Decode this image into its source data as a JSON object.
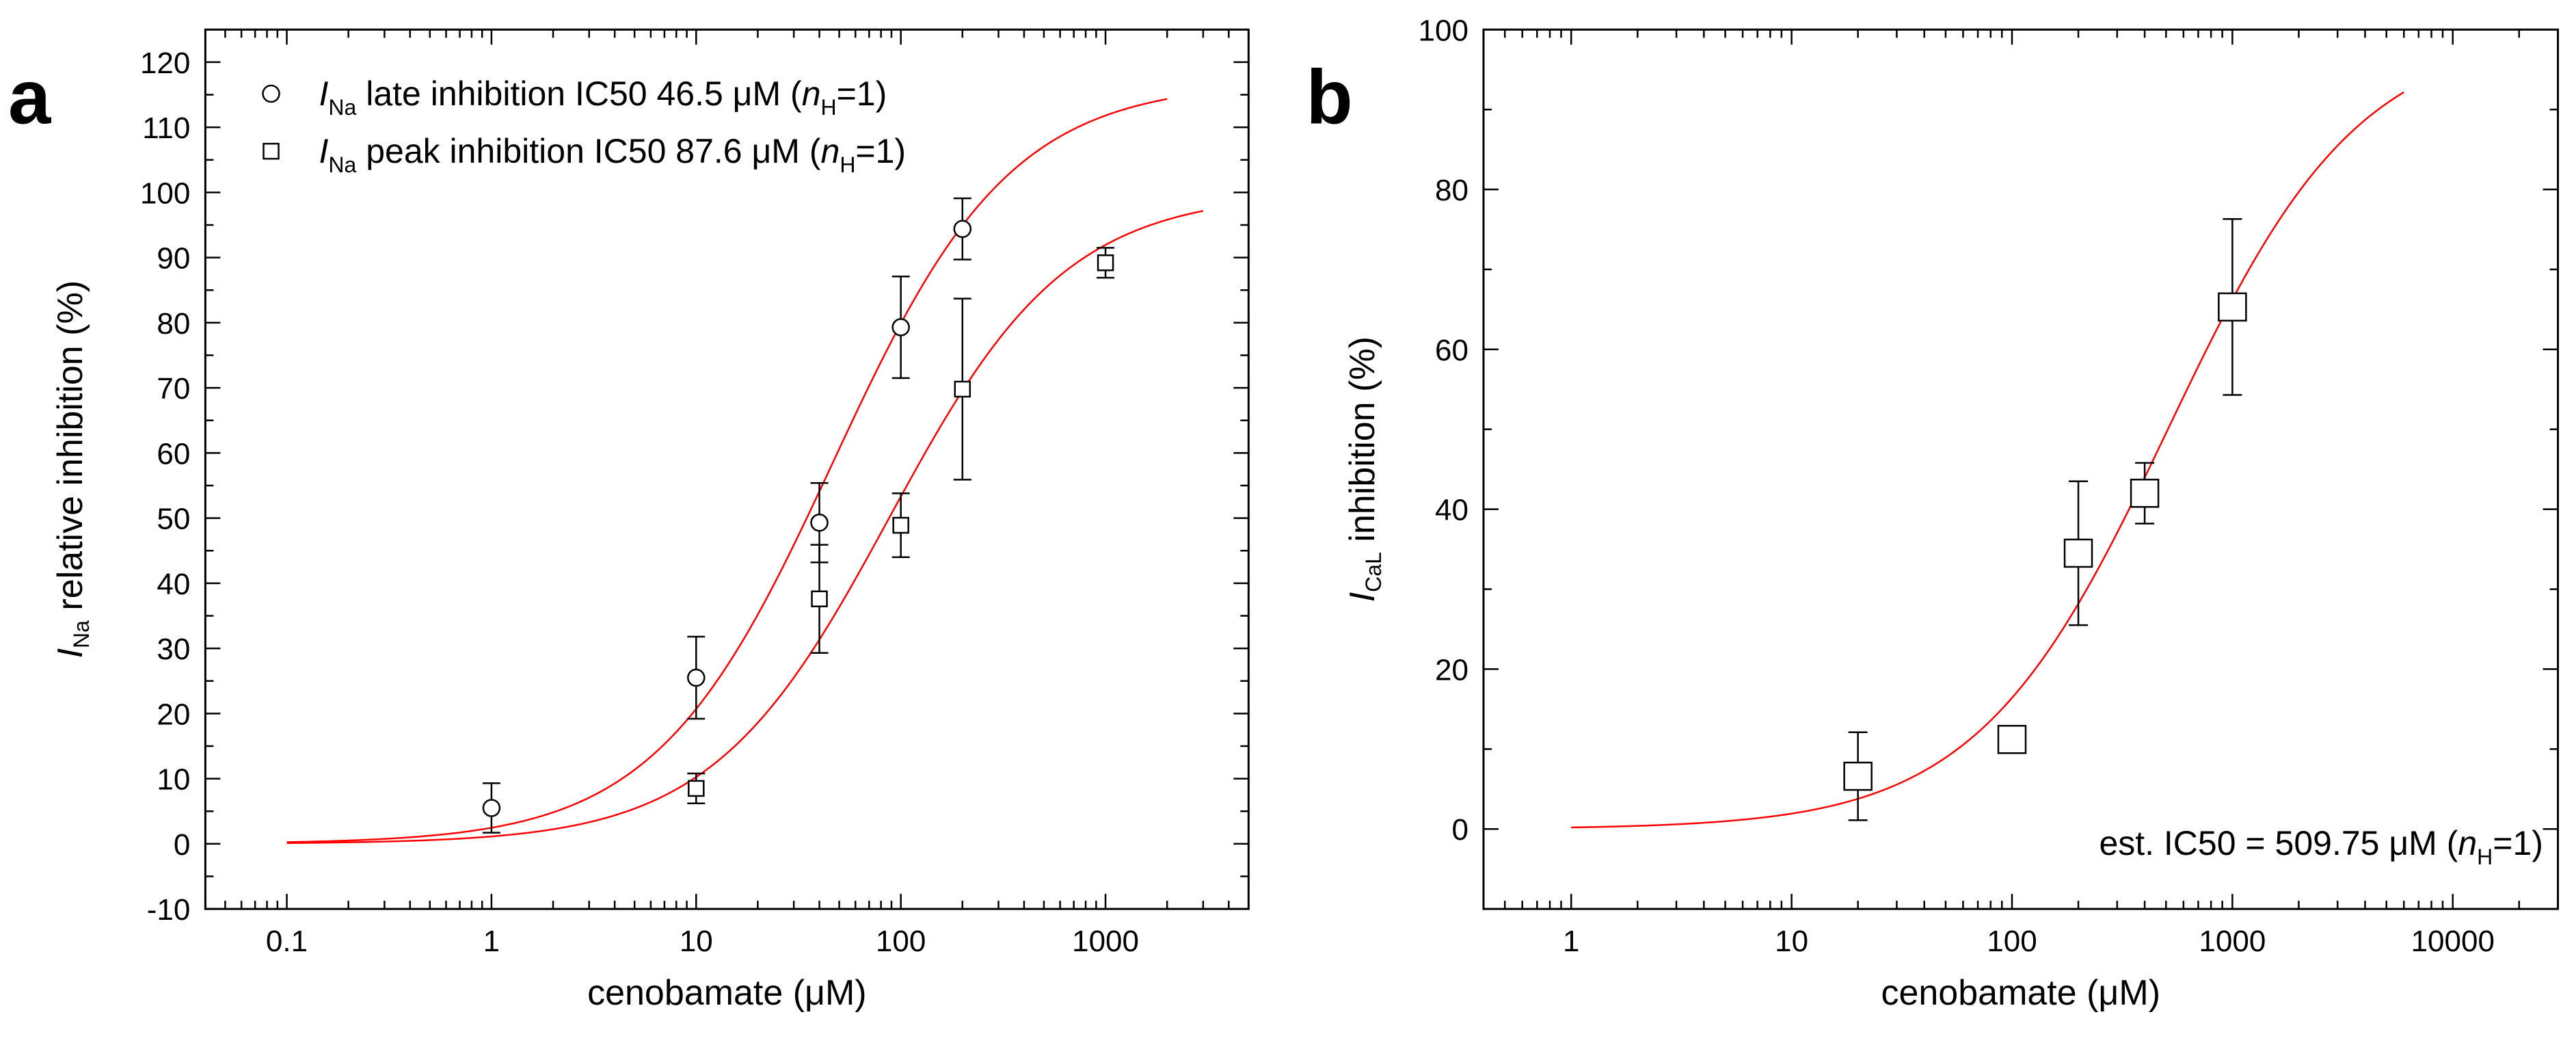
{
  "chart_data": [
    {
      "panel_label": "a",
      "type": "scatter",
      "xscale": "log",
      "xlim": [
        0.04,
        5000
      ],
      "ylim": [
        -10,
        125
      ],
      "xlabel": "cenobamate (μM)",
      "ylabel": {
        "italic": "I",
        "sub": "Na",
        "rest": " relative inhibition (%)"
      },
      "xticks": [
        0.1,
        1,
        10,
        100,
        1000
      ],
      "xtick_labels": [
        "0.1",
        "1",
        "10",
        "100",
        "1000"
      ],
      "yticks": [
        -10,
        0,
        10,
        20,
        30,
        40,
        50,
        60,
        70,
        80,
        90,
        100,
        110,
        120
      ],
      "ytick_labels": [
        "-10",
        "0",
        "10",
        "20",
        "30",
        "40",
        "50",
        "60",
        "70",
        "80",
        "90",
        "100",
        "110",
        "120"
      ],
      "series": [
        {
          "name": "late",
          "marker": "circle",
          "legend": {
            "italic": "I",
            "sub": "Na",
            "text1": " late inhibition IC50 46.5 μM (",
            "italic2": "n",
            "sub2": "H",
            "text2": "=1)"
          },
          "x": [
            1,
            10,
            40,
            100,
            200
          ],
          "y": [
            5.5,
            25.5,
            49.3,
            79.3,
            94.4
          ],
          "err": [
            3.8,
            6.3,
            6.1,
            7.8,
            4.7
          ],
          "fit": {
            "ic50": 46.5,
            "nH": 1,
            "top": 117,
            "x_range": [
              0.1,
              2000
            ]
          }
        },
        {
          "name": "peak",
          "marker": "square",
          "legend": {
            "italic": "I",
            "sub": "Na",
            "text1": " peak inhibition IC50 87.6 μM (",
            "italic2": "n",
            "sub2": "H",
            "text2": "=1)"
          },
          "x": [
            10,
            40,
            100,
            200,
            1000
          ],
          "y": [
            8.5,
            37.6,
            48.9,
            69.8,
            89.2
          ],
          "err": [
            2.3,
            8.3,
            4.9,
            13.9,
            2.3
          ],
          "fit": {
            "ic50": 87.6,
            "nH": 1,
            "top": 100,
            "x_range": [
              0.1,
              3000
            ]
          }
        }
      ]
    },
    {
      "panel_label": "b",
      "type": "scatter",
      "xscale": "log",
      "xlim": [
        0.4,
        30000
      ],
      "ylim": [
        -10,
        100
      ],
      "xlabel": "cenobamate (μM)",
      "ylabel": {
        "italic": "I",
        "sub": "CaL",
        "rest": " inhibition (%)"
      },
      "xticks": [
        1,
        10,
        100,
        1000,
        10000
      ],
      "xtick_labels": [
        "1",
        "10",
        "100",
        "1000",
        "10000"
      ],
      "yticks": [
        0,
        20,
        40,
        60,
        80,
        100
      ],
      "ytick_labels": [
        "0",
        "20",
        "40",
        "60",
        "80",
        "100"
      ],
      "annotation": {
        "text1": "est. IC50 = 509.75 μM (",
        "italic": "n",
        "sub": "H",
        "text2": "=1)"
      },
      "series": [
        {
          "name": "CaL",
          "marker": "square",
          "x": [
            20,
            100,
            200,
            400,
            1000
          ],
          "y": [
            6.6,
            11.2,
            34.5,
            42.0,
            65.3
          ],
          "err": [
            5.5,
            1.3,
            9.0,
            3.8,
            11.0
          ],
          "fit": {
            "ic50": 509.75,
            "nH": 1,
            "top": 100,
            "x_range": [
              1,
              6000
            ]
          }
        }
      ]
    }
  ]
}
